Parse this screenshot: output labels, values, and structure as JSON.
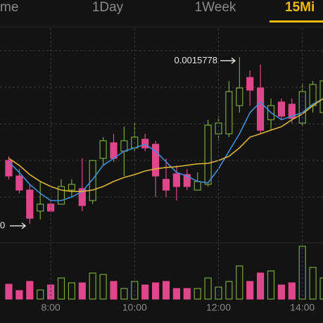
{
  "tabs": [
    "me",
    "1Day",
    "1Week",
    "15Mi"
  ],
  "chart_data": {
    "type": "candlestick",
    "categories": [
      null,
      null,
      null,
      null,
      "8:00",
      null,
      null,
      null,
      null,
      null,
      null,
      null,
      "10:00",
      null,
      null,
      null,
      null,
      null,
      null,
      null,
      "12:00",
      null,
      null,
      null,
      null,
      null,
      null,
      null,
      "14:00",
      null,
      null
    ],
    "open": [
      0.0015345,
      0.001528,
      0.0015221,
      0.0015133,
      0.0015162,
      0.0015162,
      0.0015221,
      0.0015227,
      0.0015177,
      0.0015354,
      0.0015419,
      0.0015384,
      0.0015398,
      0.0015434,
      0.0015413,
      0.0015266,
      0.0015289,
      0.0015286,
      0.0015221,
      0.0015245,
      0.0015457,
      0.0015457,
      0.0015575,
      0.0015693,
      0.0015649,
      0.0015516,
      0.001559,
      0.0015581,
      0.0015502,
      0.0015575,
      0.0015546
    ],
    "high": [
      0.0015363,
      0.001531,
      0.0015245,
      0.0015257,
      0.0015177,
      0.0015266,
      0.0015266,
      0.0015354,
      0.0015345,
      0.0015443,
      0.0015457,
      0.0015487,
      0.0015502,
      0.0015457,
      0.0015428,
      0.0015354,
      0.0015325,
      0.001531,
      0.0015295,
      0.0015516,
      0.0015531,
      0.0015679,
      0.0015778,
      0.0015723,
      0.0015747,
      0.0015605,
      0.0015605,
      0.0015605,
      0.001567,
      0.0015679,
      0.0015679
    ],
    "low": [
      0.0015266,
      0.0015207,
      0.001508,
      0.0015097,
      0.0015127,
      0.0015162,
      0.0015192,
      0.0015133,
      0.0015162,
      0.0015325,
      0.0015339,
      0.001528,
      0.0015384,
      0.0015384,
      0.0015192,
      0.0015192,
      0.0015177,
      0.0015221,
      0.0015221,
      0.0015236,
      0.0015428,
      0.0015443,
      0.0015546,
      0.0015575,
      0.0015457,
      0.0015472,
      0.0015516,
      0.0015502,
      0.0015487,
      0.0015546,
      0.0015546
    ],
    "close": [
      0.001528,
      0.0015221,
      0.0015103,
      0.0015162,
      0.0015133,
      0.0015236,
      0.0015245,
      0.0015156,
      0.0015345,
      0.0015428,
      0.0015354,
      0.0015428,
      0.0015443,
      0.0015398,
      0.001528,
      0.0015221,
      0.0015236,
      0.0015236,
      0.0015257,
      0.0015493,
      0.0015502,
      0.0015634,
      0.0015649,
      0.001564,
      0.0015472,
      0.0015575,
      0.0015531,
      0.0015522,
      0.0015634,
      0.0015664,
      0.0015679
    ],
    "up_color": "#7aa63a",
    "down_color": "#e0468a",
    "ylim": [
      0.0015,
      0.00159
    ],
    "moving_averages": [
      {
        "color": "#3d8fd9",
        "values": [
          0.0015339,
          0.0015295,
          0.0015245,
          0.0015207,
          0.0015177,
          0.0015177,
          0.0015192,
          0.0015215,
          0.0015266,
          0.0015325,
          0.0015354,
          0.0015384,
          0.0015398,
          0.0015413,
          0.0015384,
          0.0015339,
          0.0015295,
          0.001528,
          0.0015257,
          0.0015251,
          0.001531,
          0.0015384,
          0.0015457,
          0.0015546,
          0.001559,
          0.0015546,
          0.0015516,
          0.0015531,
          0.0015546,
          0.0015581,
          0.0015605
        ]
      },
      {
        "color": "#d9b23a",
        "values": [
          0.0015354,
          0.0015325,
          0.0015286,
          0.0015257,
          0.0015236,
          0.0015221,
          0.0015215,
          0.0015215,
          0.0015221,
          0.0015236,
          0.0015257,
          0.0015274,
          0.0015286,
          0.0015301,
          0.001531,
          0.0015316,
          0.0015319,
          0.0015325,
          0.0015331,
          0.0015333,
          0.0015345,
          0.0015363,
          0.0015398,
          0.0015443,
          0.0015457,
          0.0015472,
          0.0015487,
          0.0015516,
          0.001554,
          0.0015575,
          0.0015605
        ]
      }
    ],
    "volume": [
      21,
      12,
      25,
      13,
      20,
      30,
      23,
      23,
      37,
      35,
      25,
      15,
      25,
      20,
      23,
      25,
      15,
      15,
      15,
      30,
      17,
      25,
      47,
      25,
      37,
      40,
      20,
      23,
      75,
      45,
      30
    ],
    "vlim": [
      0,
      80
    ],
    "high_marker_index": 22,
    "low_marker_text": "0"
  }
}
